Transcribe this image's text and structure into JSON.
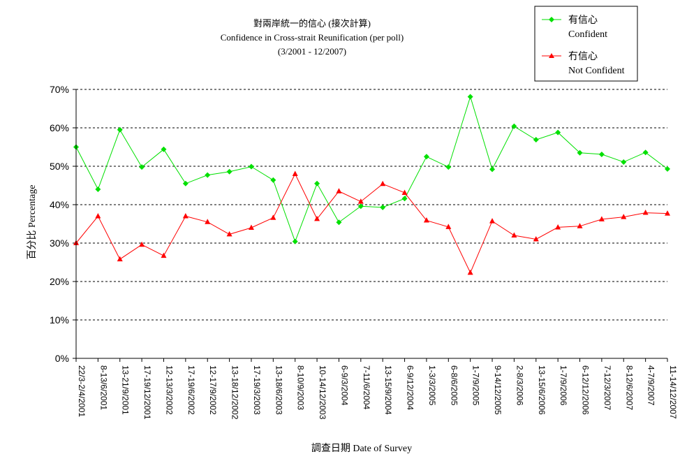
{
  "chart_data": {
    "type": "line",
    "title": "對兩岸統一的信心 (接次計算)",
    "subtitle": "Confidence in Cross-strait Reunification (per poll)",
    "period": "(3/2001 - 12/2007)",
    "xlabel": "調查日期 Date of Survey",
    "ylabel": "百分比 Percentage",
    "ylim": [
      0,
      70
    ],
    "yticks": [
      "0%",
      "10%",
      "20%",
      "30%",
      "40%",
      "50%",
      "60%",
      "70%"
    ],
    "grid": true,
    "legend_position": "top-right",
    "categories": [
      "22/3-2/4/2001",
      "8-13/6/2001",
      "13-21/9/2001",
      "17-19/12/2001",
      "12-13/3/2002",
      "17-19/6/2002",
      "12-17/9/2002",
      "13-18/12/2002",
      "17-19/3/2003",
      "13-18/6/2003",
      "8-10/9/2003",
      "10-14/12/2003",
      "6-9/3/2004",
      "7-11/6/2004",
      "13-15/9/2004",
      "6-9/12/2004",
      "1-3/3/2005",
      "6-8/6/2005",
      "1-7/9/2005",
      "9-14/12/2005",
      "2-8/3/2006",
      "13-15/6/2006",
      "1-7/9/2006",
      "6-12/12/2006",
      "7-12/3/2007",
      "8-12/6/2007",
      "4-7/9/2007",
      "11-14/12/2007"
    ],
    "series": [
      {
        "name": "有信心",
        "name_en": "Confident",
        "color": "#00e000",
        "marker": "diamond",
        "values": [
          55,
          44,
          59.5,
          49.8,
          54.4,
          45.5,
          47.7,
          48.6,
          49.9,
          46.4,
          30.4,
          45.5,
          35.4,
          39.6,
          39.3,
          41.6,
          52.5,
          49.8,
          68.1,
          49.2,
          60.4,
          56.9,
          58.8,
          53.5,
          53.1,
          51.1,
          53.6,
          49.3
        ]
      },
      {
        "name": "冇信心",
        "name_en": "Not Confident",
        "color": "#ff0000",
        "marker": "triangle",
        "values": [
          30,
          37,
          25.8,
          29.6,
          26.7,
          37,
          35.5,
          32.3,
          34,
          36.6,
          48,
          36.3,
          43.5,
          40.8,
          45.4,
          43.1,
          35.9,
          34.2,
          22.3,
          35.7,
          32,
          31,
          34.1,
          34.4,
          36.2,
          36.8,
          37.9,
          37.7
        ]
      }
    ]
  }
}
